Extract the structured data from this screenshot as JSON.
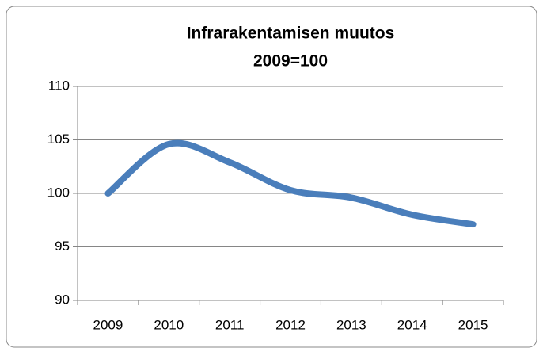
{
  "chart_data": {
    "type": "line",
    "title": "Infrarakentamisen muutos",
    "subtitle": "2009=100",
    "categories": [
      "2009",
      "2010",
      "2011",
      "2012",
      "2013",
      "2014",
      "2015"
    ],
    "series": [
      {
        "name": "Infrarakentamisen muutos",
        "color": "#4a7ebb",
        "values": [
          100,
          104.6,
          102.9,
          100.3,
          99.6,
          98.0,
          97.1
        ]
      }
    ],
    "ylim": [
      90,
      110
    ],
    "yticks": [
      90,
      95,
      100,
      105,
      110
    ],
    "grid": true,
    "smooth": true
  }
}
